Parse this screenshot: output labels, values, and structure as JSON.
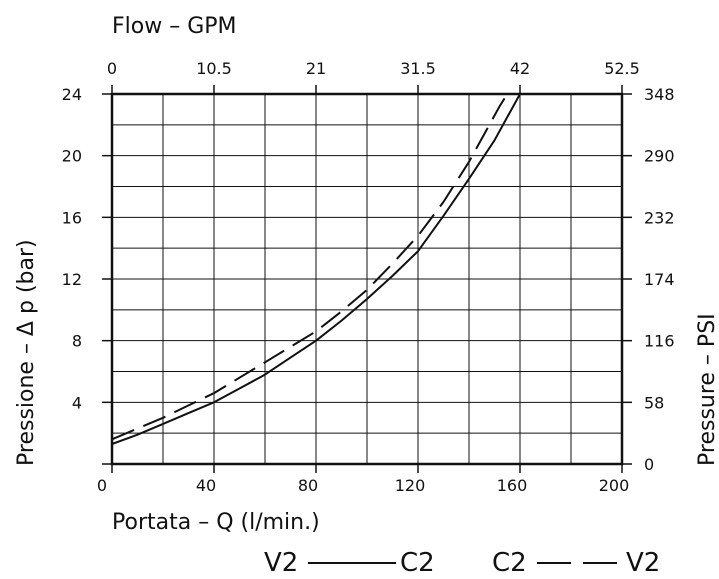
{
  "chart_data": {
    "type": "line",
    "xlabel": "Portata – Q (l/min.)",
    "x2label": "Flow – GPM",
    "ylabel": "Pressione – Δ p (bar)",
    "y2label": "Pressure – PSI",
    "x_ticks": [
      "0",
      "40",
      "80",
      "120",
      "160",
      "200"
    ],
    "x2_ticks": [
      "0",
      "10.5",
      "21",
      "31.5",
      "42",
      "52.5"
    ],
    "y_ticks": [
      "0",
      "4",
      "8",
      "12",
      "16",
      "20",
      "24"
    ],
    "y2_ticks": [
      "0",
      "58",
      "116",
      "174",
      "232",
      "290",
      "348"
    ],
    "xlim": [
      0,
      200
    ],
    "ylim": [
      0,
      24
    ],
    "grid": true,
    "series": [
      {
        "style": "solid",
        "x": [
          0,
          10,
          20,
          30,
          40,
          50,
          60,
          70,
          80,
          90,
          100,
          110,
          120,
          130,
          140,
          150,
          160
        ],
        "values": [
          1.3,
          1.9,
          2.6,
          3.3,
          4.0,
          4.9,
          5.8,
          6.9,
          8.0,
          9.3,
          10.7,
          12.2,
          13.8,
          16.1,
          18.5,
          21.0,
          24.0
        ]
      },
      {
        "style": "dashed",
        "x": [
          0,
          10,
          20,
          30,
          40,
          50,
          60,
          70,
          80,
          90,
          100,
          110,
          120,
          130,
          140,
          148,
          152,
          155
        ],
        "values": [
          1.6,
          2.3,
          3.0,
          3.8,
          4.6,
          5.6,
          6.6,
          7.6,
          8.6,
          9.9,
          11.3,
          13.0,
          14.8,
          17.0,
          19.6,
          22.0,
          23.2,
          24.0
        ]
      }
    ]
  },
  "legend": {
    "solid_left": "V2",
    "solid_right": "C2",
    "dashed_left": "C2",
    "dashed_right": "V2"
  }
}
